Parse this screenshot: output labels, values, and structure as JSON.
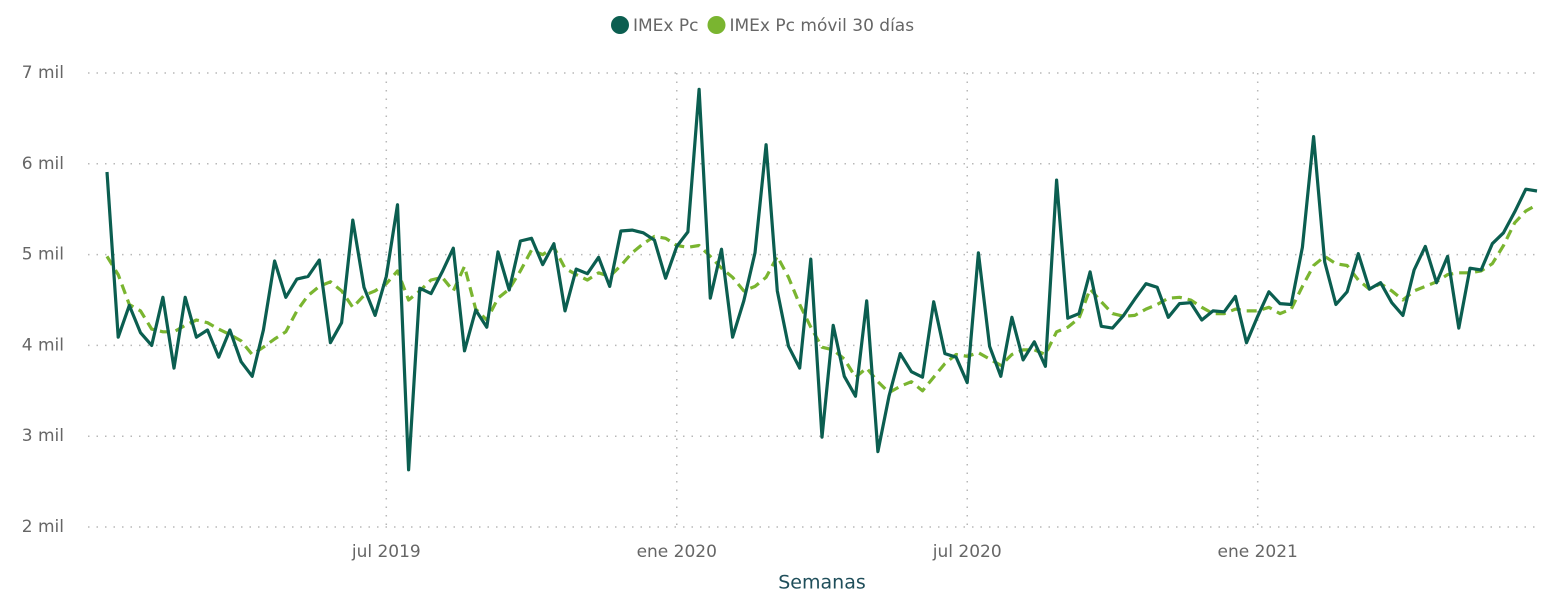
{
  "chart_data": {
    "type": "line",
    "x_label": "Semanas",
    "legend": "top",
    "grid": true,
    "categories": [
      null,
      null,
      null,
      null,
      null,
      null,
      null,
      null,
      null,
      null,
      null,
      null,
      null,
      null,
      null,
      null,
      null,
      null,
      null,
      null,
      null,
      null,
      null,
      null,
      null,
      "jul 2019",
      null,
      null,
      null,
      null,
      null,
      null,
      null,
      null,
      null,
      null,
      null,
      null,
      null,
      null,
      null,
      null,
      null,
      null,
      null,
      null,
      null,
      null,
      null,
      null,
      null,
      "ene 2020",
      null,
      null,
      null,
      null,
      null,
      null,
      null,
      null,
      null,
      null,
      null,
      null,
      null,
      null,
      null,
      null,
      null,
      null,
      null,
      null,
      null,
      null,
      null,
      null,
      null,
      "jul 2020",
      null,
      null,
      null,
      null,
      null,
      null,
      null,
      null,
      null,
      null,
      null,
      null,
      null,
      null,
      null,
      null,
      null,
      null,
      null,
      null,
      null,
      null,
      null,
      null,
      null,
      "ene 2021",
      null,
      null,
      null,
      null,
      null,
      null,
      null,
      null,
      null,
      null,
      null,
      null,
      null,
      null,
      null,
      null,
      null,
      null,
      null,
      null,
      null,
      null,
      null,
      null,
      null
    ],
    "series": [
      {
        "name": "IMEx Pc",
        "color": "#0b5e50",
        "dashed": false,
        "values": [
          5910,
          4090,
          4440,
          4140,
          4000,
          4530,
          3750,
          4530,
          4090,
          4170,
          3870,
          4170,
          3820,
          3660,
          4170,
          4930,
          4530,
          4730,
          4760,
          4940,
          4030,
          4250,
          5380,
          4640,
          4330,
          4760,
          5550,
          2630,
          4630,
          4570,
          4810,
          5070,
          3940,
          4390,
          4200,
          5030,
          4610,
          5150,
          5180,
          4890,
          5120,
          4380,
          4840,
          4790,
          4970,
          4650,
          5260,
          5270,
          5240,
          5160,
          4740,
          5090,
          5250,
          6820,
          4520,
          5060,
          4090,
          4490,
          5020,
          6210,
          4600,
          3990,
          3750,
          4950,
          2990,
          4220,
          3660,
          3440,
          4490,
          2830,
          3440,
          3910,
          3710,
          3650,
          4480,
          3910,
          3870,
          3590,
          5020,
          3990,
          3660,
          4310,
          3840,
          4040,
          3770,
          5820,
          4300,
          4350,
          4810,
          4210,
          4190,
          4330,
          4510,
          4680,
          4640,
          4310,
          4460,
          4470,
          4280,
          4380,
          4370,
          4540,
          4030,
          4320,
          4590,
          4460,
          4450,
          5080,
          6300,
          4920,
          4450,
          4590,
          5010,
          4620,
          4690,
          4470,
          4330,
          4830,
          5090,
          4690,
          4980,
          4190,
          4850,
          4830,
          5120,
          5240,
          5470,
          5720,
          5700
        ]
      },
      {
        "name": "IMEx Pc móvil 30 días",
        "color": "#7ab530",
        "dashed": true,
        "values": [
          4980,
          4780,
          4450,
          4380,
          4180,
          4150,
          4150,
          4220,
          4280,
          4250,
          4180,
          4120,
          4050,
          3900,
          3980,
          4070,
          4150,
          4380,
          4550,
          4650,
          4700,
          4600,
          4420,
          4550,
          4600,
          4680,
          4820,
          4500,
          4600,
          4720,
          4750,
          4600,
          4870,
          4400,
          4280,
          4520,
          4620,
          4820,
          5050,
          5000,
          5080,
          4850,
          4780,
          4720,
          4800,
          4760,
          4880,
          5020,
          5120,
          5200,
          5180,
          5100,
          5080,
          5100,
          4980,
          4850,
          4750,
          4600,
          4650,
          4750,
          4980,
          4750,
          4450,
          4200,
          3980,
          3950,
          3850,
          3650,
          3750,
          3600,
          3480,
          3550,
          3600,
          3500,
          3650,
          3800,
          3900,
          3880,
          3920,
          3850,
          3780,
          3900,
          3950,
          3950,
          3900,
          4150,
          4200,
          4300,
          4620,
          4480,
          4350,
          4320,
          4330,
          4400,
          4450,
          4520,
          4530,
          4500,
          4420,
          4350,
          4350,
          4400,
          4380,
          4380,
          4420,
          4350,
          4400,
          4650,
          4880,
          4980,
          4900,
          4880,
          4720,
          4620,
          4680,
          4600,
          4500,
          4600,
          4650,
          4700,
          4780,
          4800,
          4800,
          4820,
          4900,
          5100,
          5350,
          5480,
          5550
        ]
      }
    ],
    "ylim": [
      2000,
      7000
    ],
    "yticks": [
      {
        "value": 2000,
        "label": "2 mil"
      },
      {
        "value": 3000,
        "label": "3 mil"
      },
      {
        "value": 4000,
        "label": "4 mil"
      },
      {
        "value": 5000,
        "label": "5 mil"
      },
      {
        "value": 6000,
        "label": "6 mil"
      },
      {
        "value": 7000,
        "label": "7 mil"
      }
    ]
  }
}
